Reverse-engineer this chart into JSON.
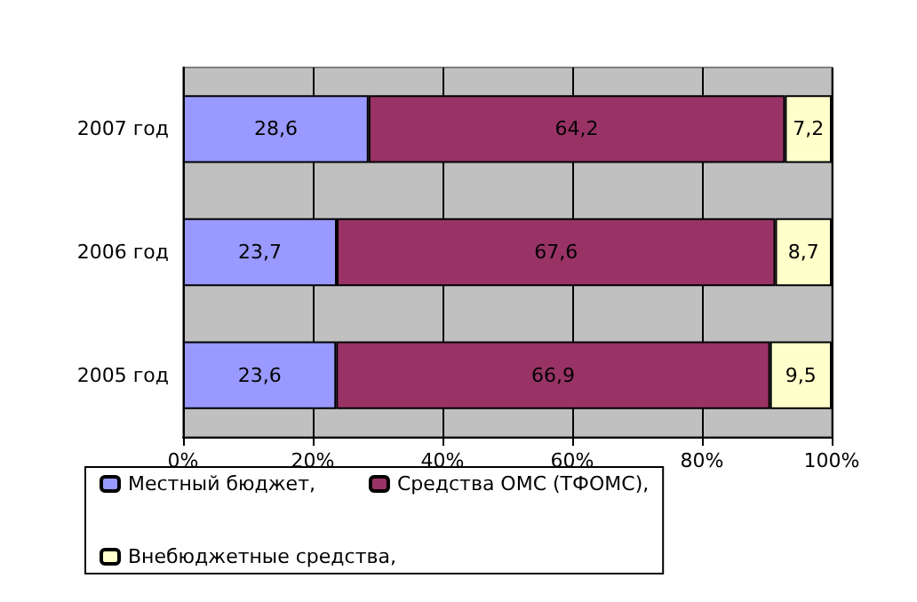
{
  "chart_data": {
    "type": "bar",
    "orientation": "horizontal",
    "stacked": true,
    "categories": [
      "2007 год",
      "2006 год",
      "2005 год"
    ],
    "series": [
      {
        "name": "Местный бюджет,",
        "color": "#9999ff",
        "values": [
          28.6,
          23.7,
          23.6
        ],
        "value_labels": [
          "28,6",
          "23,7",
          "23,6"
        ]
      },
      {
        "name": "Средства ОМС (ТФОМС),",
        "color": "#993366",
        "values": [
          64.2,
          67.6,
          66.9
        ],
        "value_labels": [
          "64,2",
          "67,6",
          "66,9"
        ]
      },
      {
        "name": "Внебюджетные средства,",
        "color": "#ffffcc",
        "values": [
          7.2,
          8.7,
          9.5
        ],
        "value_labels": [
          "7,2",
          "8,7",
          "9,5"
        ]
      }
    ],
    "xlim": [
      0,
      100
    ],
    "xticks": [
      {
        "value": 0,
        "label": "0%"
      },
      {
        "value": 20,
        "label": "20%"
      },
      {
        "value": 40,
        "label": "40%"
      },
      {
        "value": 60,
        "label": "60%"
      },
      {
        "value": 80,
        "label": "80%"
      },
      {
        "value": 100,
        "label": "100%"
      }
    ],
    "grid": "x",
    "legend": "bottom"
  }
}
